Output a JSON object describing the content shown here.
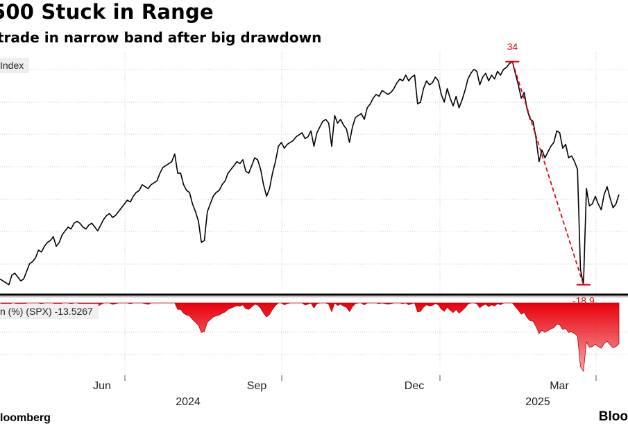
{
  "header": {
    "title": "500 Stuck in Range",
    "subtitle": "trade in narrow band after big drawdown"
  },
  "footer": {
    "source_left": "loomberg",
    "source_right": "Bloo"
  },
  "colors": {
    "line": "#000000",
    "drawdown_fill": "#e8000b",
    "annotation": "#e8000b",
    "grid": "#cccccc"
  },
  "chart_data": [
    {
      "type": "line",
      "legend_label": "Index",
      "x_ticks": [
        "Jun",
        "Sep",
        "Dec",
        "Mar"
      ],
      "year_labels": [
        "2024",
        "2025"
      ],
      "grid": true,
      "series": [
        {
          "values": [
            [
              0,
              5010
            ],
            [
              1,
              5000
            ],
            [
              2,
              4990
            ],
            [
              3,
              4980
            ],
            [
              4,
              5030
            ],
            [
              5,
              5040
            ],
            [
              6,
              5020
            ],
            [
              7,
              5000
            ],
            [
              8,
              5010
            ],
            [
              9,
              5050
            ],
            [
              10,
              5090
            ],
            [
              11,
              5100
            ],
            [
              12,
              5120
            ],
            [
              13,
              5160
            ],
            [
              14,
              5150
            ],
            [
              15,
              5180
            ],
            [
              16,
              5200
            ],
            [
              17,
              5210
            ],
            [
              18,
              5230
            ],
            [
              19,
              5180
            ],
            [
              20,
              5200
            ],
            [
              21,
              5240
            ],
            [
              22,
              5260
            ],
            [
              23,
              5280
            ],
            [
              24,
              5270
            ],
            [
              25,
              5300
            ],
            [
              26,
              5310
            ],
            [
              27,
              5300
            ],
            [
              28,
              5280
            ],
            [
              29,
              5270
            ],
            [
              30,
              5290
            ],
            [
              31,
              5300
            ],
            [
              32,
              5280
            ],
            [
              33,
              5260
            ],
            [
              34,
              5290
            ],
            [
              35,
              5320
            ],
            [
              36,
              5340
            ],
            [
              37,
              5350
            ],
            [
              38,
              5330
            ],
            [
              39,
              5340
            ],
            [
              40,
              5360
            ],
            [
              41,
              5380
            ],
            [
              42,
              5400
            ],
            [
              43,
              5420
            ],
            [
              44,
              5410
            ],
            [
              45,
              5440
            ],
            [
              46,
              5460
            ],
            [
              47,
              5470
            ],
            [
              48,
              5500
            ],
            [
              49,
              5490
            ],
            [
              50,
              5480
            ],
            [
              51,
              5500
            ],
            [
              52,
              5510
            ],
            [
              53,
              5520
            ],
            [
              54,
              5560
            ],
            [
              55,
              5590
            ],
            [
              56,
              5600
            ],
            [
              57,
              5610
            ],
            [
              58,
              5620
            ],
            [
              59,
              5660
            ],
            [
              60,
              5560
            ],
            [
              61,
              5560
            ],
            [
              62,
              5500
            ],
            [
              63,
              5470
            ],
            [
              64,
              5460
            ],
            [
              65,
              5400
            ],
            [
              66,
              5360
            ],
            [
              67,
              5310
            ],
            [
              68,
              5200
            ],
            [
              69,
              5210
            ],
            [
              70,
              5360
            ],
            [
              71,
              5400
            ],
            [
              72,
              5440
            ],
            [
              73,
              5460
            ],
            [
              74,
              5470
            ],
            [
              75,
              5500
            ],
            [
              76,
              5520
            ],
            [
              77,
              5560
            ],
            [
              78,
              5580
            ],
            [
              79,
              5600
            ],
            [
              80,
              5620
            ],
            [
              81,
              5610
            ],
            [
              82,
              5630
            ],
            [
              83,
              5570
            ],
            [
              84,
              5560
            ],
            [
              85,
              5600
            ],
            [
              86,
              5640
            ],
            [
              87,
              5630
            ],
            [
              88,
              5580
            ],
            [
              89,
              5500
            ],
            [
              90,
              5440
            ],
            [
              91,
              5480
            ],
            [
              92,
              5560
            ],
            [
              93,
              5620
            ],
            [
              94,
              5700
            ],
            [
              95,
              5720
            ],
            [
              96,
              5690
            ],
            [
              97,
              5710
            ],
            [
              98,
              5720
            ],
            [
              99,
              5730
            ],
            [
              100,
              5750
            ],
            [
              101,
              5760
            ],
            [
              102,
              5770
            ],
            [
              103,
              5740
            ],
            [
              104,
              5750
            ],
            [
              105,
              5780
            ],
            [
              106,
              5700
            ],
            [
              107,
              5770
            ],
            [
              108,
              5800
            ],
            [
              109,
              5830
            ],
            [
              110,
              5840
            ],
            [
              111,
              5820
            ],
            [
              112,
              5700
            ],
            [
              113,
              5860
            ],
            [
              114,
              5820
            ],
            [
              115,
              5840
            ],
            [
              116,
              5810
            ],
            [
              117,
              5790
            ],
            [
              118,
              5720
            ],
            [
              119,
              5800
            ],
            [
              120,
              5850
            ],
            [
              121,
              5860
            ],
            [
              122,
              5870
            ],
            [
              123,
              5840
            ],
            [
              124,
              5900
            ],
            [
              125,
              5920
            ],
            [
              126,
              5950
            ],
            [
              127,
              5970
            ],
            [
              128,
              5960
            ],
            [
              129,
              5990
            ],
            [
              130,
              5980
            ],
            [
              131,
              5970
            ],
            [
              132,
              5980
            ],
            [
              133,
              6000
            ],
            [
              134,
              6030
            ],
            [
              135,
              6050
            ],
            [
              136,
              6040
            ],
            [
              137,
              6070
            ],
            [
              138,
              6040
            ],
            [
              139,
              6060
            ],
            [
              140,
              6070
            ],
            [
              141,
              5920
            ],
            [
              142,
              5930
            ],
            [
              143,
              6000
            ],
            [
              144,
              6040
            ],
            [
              145,
              6020
            ],
            [
              146,
              6030
            ],
            [
              147,
              6060
            ],
            [
              148,
              6040
            ],
            [
              149,
              5970
            ],
            [
              150,
              5930
            ],
            [
              151,
              6000
            ],
            [
              152,
              5950
            ],
            [
              153,
              5910
            ],
            [
              154,
              5960
            ],
            [
              155,
              5900
            ],
            [
              156,
              5940
            ],
            [
              157,
              5990
            ],
            [
              158,
              6050
            ],
            [
              159,
              6080
            ],
            [
              160,
              6100
            ],
            [
              161,
              6090
            ],
            [
              162,
              6020
            ],
            [
              163,
              6060
            ],
            [
              164,
              6080
            ],
            [
              165,
              6040
            ],
            [
              166,
              6070
            ],
            [
              167,
              6050
            ],
            [
              168,
              6090
            ],
            [
              169,
              6070
            ],
            [
              170,
              6100
            ],
            [
              171,
              6110
            ],
            [
              172,
              6130
            ],
            [
              173,
              6140
            ],
            [
              174,
              6080
            ],
            [
              175,
              6020
            ],
            [
              176,
              5950
            ],
            [
              177,
              5980
            ],
            [
              178,
              5890
            ],
            [
              179,
              5840
            ],
            [
              180,
              5830
            ],
            [
              181,
              5740
            ],
            [
              182,
              5620
            ],
            [
              183,
              5680
            ],
            [
              184,
              5640
            ],
            [
              185,
              5670
            ],
            [
              186,
              5700
            ],
            [
              187,
              5720
            ],
            [
              188,
              5780
            ],
            [
              189,
              5770
            ],
            [
              190,
              5690
            ],
            [
              191,
              5710
            ],
            [
              192,
              5640
            ],
            [
              193,
              5650
            ],
            [
              194,
              5620
            ],
            [
              195,
              5580
            ],
            [
              196,
              5060
            ],
            [
              197,
              4980
            ],
            [
              198,
              5480
            ],
            [
              199,
              5390
            ],
            [
              200,
              5400
            ],
            [
              201,
              5440
            ],
            [
              202,
              5400
            ],
            [
              203,
              5370
            ],
            [
              204,
              5450
            ],
            [
              205,
              5490
            ],
            [
              206,
              5430
            ],
            [
              207,
              5380
            ],
            [
              208,
              5400
            ],
            [
              209,
              5450
            ]
          ]
        }
      ],
      "annotations": [
        {
          "label": "34",
          "type": "peak"
        },
        {
          "label": "-18.9",
          "type": "trough"
        }
      ]
    },
    {
      "type": "area",
      "legend_label": "n (%) (SPX)  -13.5267",
      "description_values": "drawdown from running high",
      "grid": true
    }
  ]
}
